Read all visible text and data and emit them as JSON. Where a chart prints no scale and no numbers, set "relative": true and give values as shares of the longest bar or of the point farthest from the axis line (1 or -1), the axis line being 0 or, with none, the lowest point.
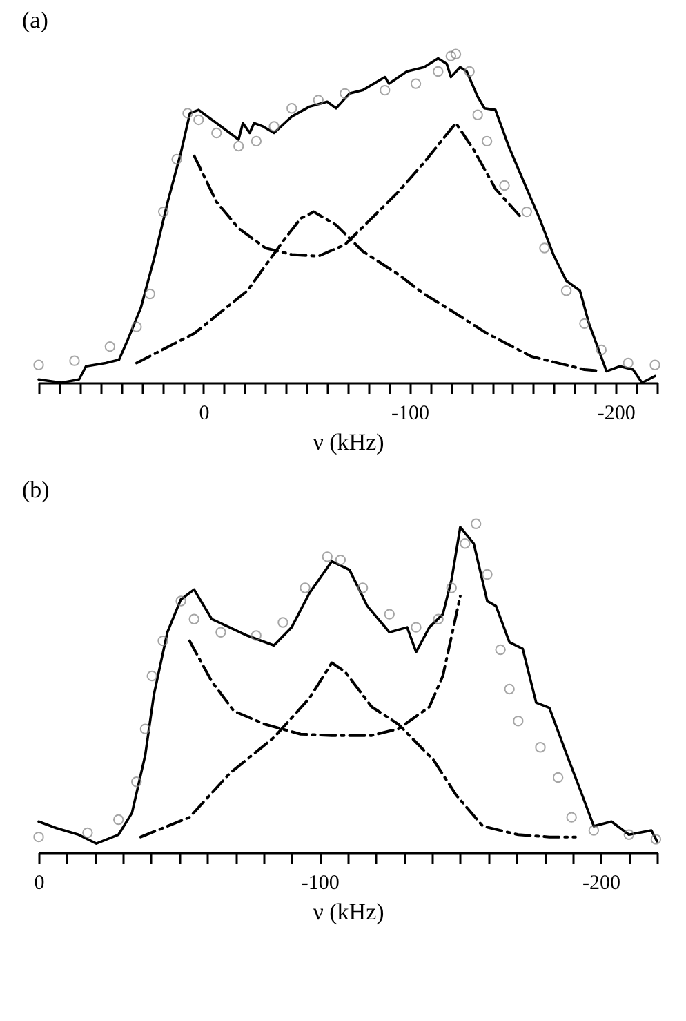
{
  "chart_data": [
    {
      "type": "line",
      "title": "(a)",
      "xlabel": "ν (kHz)",
      "relative": true,
      "tick_labels": "x",
      "grid": false,
      "xlim": [
        80,
        -220
      ],
      "xticks": [
        {
          "value": 80,
          "label": null
        },
        {
          "value": 70,
          "label": null
        },
        {
          "value": 60,
          "label": null
        },
        {
          "value": 50,
          "label": null
        },
        {
          "value": 40,
          "label": null
        },
        {
          "value": 30,
          "label": null
        },
        {
          "value": 20,
          "label": null
        },
        {
          "value": 10,
          "label": null
        },
        0,
        {
          "value": -10,
          "label": null
        },
        {
          "value": -20,
          "label": null
        },
        {
          "value": -30,
          "label": null
        },
        {
          "value": -40,
          "label": null
        },
        {
          "value": -50,
          "label": null
        },
        {
          "value": -60,
          "label": null
        },
        {
          "value": -70,
          "label": null
        },
        {
          "value": -80,
          "label": null
        },
        {
          "value": -90,
          "label": null
        },
        -100,
        {
          "value": -110,
          "label": null
        },
        {
          "value": -120,
          "label": null
        },
        {
          "value": -130,
          "label": null
        },
        {
          "value": -140,
          "label": null
        },
        {
          "value": -150,
          "label": null
        },
        {
          "value": -160,
          "label": null
        },
        {
          "value": -170,
          "label": null
        },
        {
          "value": -180,
          "label": null
        },
        {
          "value": -190,
          "label": null
        },
        -200,
        {
          "value": -210,
          "label": null
        },
        {
          "value": -220,
          "label": null
        }
      ],
      "series": [
        {
          "color": "#000000",
          "line_style": "solid",
          "x": [
            80,
            69,
            60.4,
            57,
            47.5,
            41,
            36.8,
            30.3,
            23.9,
            17.4,
            11,
            6.6,
            2.4,
            -6.3,
            -17,
            -19.1,
            -22.4,
            -24.5,
            -28.8,
            -34.2,
            -42.8,
            -51.4,
            -60,
            -64.3,
            -70.8,
            -77.2,
            -88,
            -90,
            -98.6,
            -107,
            -113.8,
            -118,
            -120,
            -124.5,
            -127.7,
            -133,
            -136.3,
            -141.6,
            -148,
            -156.8,
            -163,
            -169.7,
            -176,
            -182.6,
            -187,
            -195.5,
            -202,
            -208.4,
            -212.7,
            -219
          ],
          "values": [
            0.01,
            0.0,
            0.01,
            0.05,
            0.06,
            0.07,
            0.13,
            0.23,
            0.38,
            0.55,
            0.7,
            0.82,
            0.83,
            0.79,
            0.74,
            0.79,
            0.76,
            0.79,
            0.78,
            0.76,
            0.81,
            0.84,
            0.855,
            0.835,
            0.88,
            0.89,
            0.93,
            0.91,
            0.947,
            0.96,
            0.987,
            0.97,
            0.93,
            0.96,
            0.947,
            0.87,
            0.835,
            0.83,
            0.72,
            0.59,
            0.5,
            0.39,
            0.31,
            0.28,
            0.18,
            0.035,
            0.05,
            0.04,
            0.0,
            0.02
          ]
        },
        {
          "type": "scatter",
          "color": "#808080",
          "marker": "circle",
          "x": [
            80,
            62.6,
            45.4,
            32.5,
            26,
            19.5,
            13,
            7.7,
            2.4,
            -6.3,
            -17,
            -25.6,
            -34.2,
            -42.8,
            -55.7,
            -68.6,
            -88,
            -103,
            -113.8,
            -120,
            -122.4,
            -129,
            -133,
            -137.5,
            -146,
            -156.8,
            -165.4,
            -176,
            -184.8,
            -193,
            -206,
            -219
          ],
          "values": [
            0.054,
            0.067,
            0.11,
            0.17,
            0.27,
            0.52,
            0.68,
            0.82,
            0.8,
            0.76,
            0.72,
            0.735,
            0.78,
            0.835,
            0.86,
            0.88,
            0.89,
            0.91,
            0.947,
            0.994,
            1.0,
            0.947,
            0.815,
            0.735,
            0.6,
            0.52,
            0.41,
            0.28,
            0.18,
            0.1,
            0.06,
            0.054
          ]
        },
        {
          "color": "#000000",
          "line_style": "dashed",
          "x": [
            4.5,
            -6.3,
            -17,
            -30,
            -42.8,
            -55.7,
            -68.6,
            -81.5,
            -94.4,
            -107,
            -115.9,
            -122.4,
            -131,
            -141.6,
            -154.5
          ],
          "values": [
            0.69,
            0.55,
            0.47,
            0.41,
            0.39,
            0.385,
            0.42,
            0.5,
            0.58,
            0.67,
            0.74,
            0.79,
            0.71,
            0.59,
            0.5
          ]
        },
        {
          "color": "#000000",
          "line_style": "dashed",
          "x": [
            32.5,
            4.5,
            -21.3,
            -38.5,
            -47.1,
            -53.5,
            -64.3,
            -77.2,
            -94.4,
            -107,
            -120,
            -137.5,
            -159,
            -184.8,
            -193
          ],
          "values": [
            0.06,
            0.15,
            0.28,
            0.43,
            0.5,
            0.52,
            0.48,
            0.4,
            0.33,
            0.27,
            0.22,
            0.15,
            0.08,
            0.04,
            0.035
          ]
        }
      ]
    },
    {
      "type": "line",
      "title": "(b)",
      "xlabel": "ν (kHz)",
      "relative": true,
      "tick_labels": "x",
      "grid": false,
      "xlim": [
        0,
        -220
      ],
      "xticks": [
        0,
        {
          "value": -10,
          "label": null
        },
        {
          "value": -20,
          "label": null
        },
        {
          "value": -30,
          "label": null
        },
        {
          "value": -40,
          "label": null
        },
        {
          "value": -50,
          "label": null
        },
        {
          "value": -60,
          "label": null
        },
        {
          "value": -70,
          "label": null
        },
        {
          "value": -80,
          "label": null
        },
        {
          "value": -90,
          "label": null
        },
        -100,
        {
          "value": -110,
          "label": null
        },
        {
          "value": -120,
          "label": null
        },
        {
          "value": -130,
          "label": null
        },
        {
          "value": -140,
          "label": null
        },
        {
          "value": -150,
          "label": null
        },
        {
          "value": -160,
          "label": null
        },
        {
          "value": -170,
          "label": null
        },
        {
          "value": -180,
          "label": null
        },
        {
          "value": -190,
          "label": null
        },
        -200,
        {
          "value": -210,
          "label": null
        },
        {
          "value": -220,
          "label": null
        }
      ],
      "series": [
        {
          "color": "#000000",
          "line_style": "solid",
          "x": [
            0,
            -6.3,
            -14.2,
            -20.5,
            -28.4,
            -33.2,
            -37.9,
            -41,
            -45.8,
            -50.6,
            -55.3,
            -61.6,
            -67.9,
            -74.2,
            -83.7,
            -90,
            -96.4,
            -104.3,
            -110.6,
            -116.9,
            -124.8,
            -131.1,
            -134.3,
            -139,
            -143.8,
            -146.9,
            -150,
            -154.8,
            -159.6,
            -162.7,
            -167.5,
            -172.2,
            -177,
            -181.7,
            -188,
            -192.7,
            -197.5,
            -203.8,
            -210,
            -218,
            -220
          ],
          "values": [
            0.094,
            0.074,
            0.054,
            0.027,
            0.054,
            0.12,
            0.295,
            0.48,
            0.67,
            0.77,
            0.8,
            0.71,
            0.685,
            0.66,
            0.63,
            0.685,
            0.79,
            0.886,
            0.86,
            0.75,
            0.67,
            0.685,
            0.61,
            0.685,
            0.725,
            0.83,
            0.99,
            0.94,
            0.765,
            0.75,
            0.64,
            0.62,
            0.456,
            0.44,
            0.295,
            0.19,
            0.08,
            0.094,
            0.054,
            0.067,
            0.034
          ]
        },
        {
          "type": "scatter",
          "color": "#808080",
          "marker": "circle",
          "x": [
            0,
            -17.4,
            -28.4,
            -34.8,
            -37.9,
            -40.3,
            -44.2,
            -50.6,
            -55.3,
            -64.8,
            -77.4,
            -86.9,
            -94.8,
            -102.7,
            -107.4,
            -115.3,
            -124.8,
            -134.3,
            -142.2,
            -146.9,
            -151.7,
            -155.6,
            -159.6,
            -164.3,
            -167.5,
            -170.6,
            -178.5,
            -184.8,
            -189.6,
            -197.5,
            -210,
            -219.6
          ],
          "values": [
            0.047,
            0.06,
            0.1,
            0.215,
            0.376,
            0.537,
            0.644,
            0.765,
            0.71,
            0.67,
            0.66,
            0.7,
            0.805,
            0.9,
            0.89,
            0.805,
            0.725,
            0.685,
            0.71,
            0.805,
            0.94,
            1.0,
            0.846,
            0.617,
            0.497,
            0.4,
            0.32,
            0.228,
            0.107,
            0.067,
            0.054,
            0.04
          ]
        },
        {
          "color": "#000000",
          "line_style": "dashed",
          "x": [
            -53.7,
            -61.6,
            -69.5,
            -80.6,
            -93.2,
            -104.3,
            -118.5,
            -128,
            -139,
            -143.8,
            -146.9,
            -150
          ],
          "values": [
            0.644,
            0.52,
            0.43,
            0.39,
            0.36,
            0.356,
            0.356,
            0.376,
            0.443,
            0.537,
            0.658,
            0.78
          ]
        },
        {
          "color": "#000000",
          "line_style": "dashed",
          "x": [
            -36.3,
            -53.7,
            -67.9,
            -83.7,
            -96.4,
            -104.3,
            -109,
            -118.5,
            -128,
            -140.6,
            -148.5,
            -158,
            -170.6,
            -181.7,
            -191
          ],
          "values": [
            0.047,
            0.107,
            0.24,
            0.35,
            0.47,
            0.577,
            0.55,
            0.443,
            0.39,
            0.28,
            0.175,
            0.08,
            0.054,
            0.047,
            0.047
          ]
        }
      ]
    }
  ]
}
